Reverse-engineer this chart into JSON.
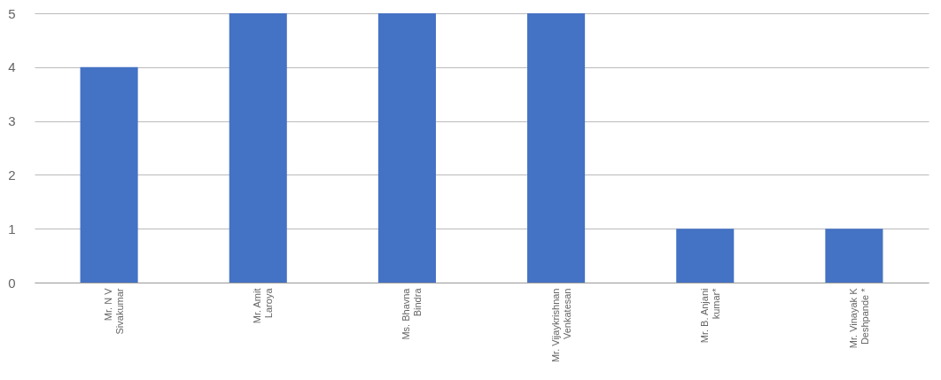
{
  "chart_data": {
    "type": "bar",
    "categories": [
      "Mr. N V Sivakumar",
      "Mr. Amit Laroya",
      "Ms. Bhavna Bindra",
      "Mr. Vijaykrishnan Venkatesan",
      "Mr. B. Anjani kumar*",
      "Mr. Vinayak K Deshpande *"
    ],
    "values": [
      4,
      5,
      5,
      5,
      1,
      1
    ],
    "color": "#4472c4",
    "ylim": [
      0,
      5
    ],
    "yticks": [
      0,
      1,
      2,
      3,
      4,
      5
    ],
    "grid": "y"
  }
}
